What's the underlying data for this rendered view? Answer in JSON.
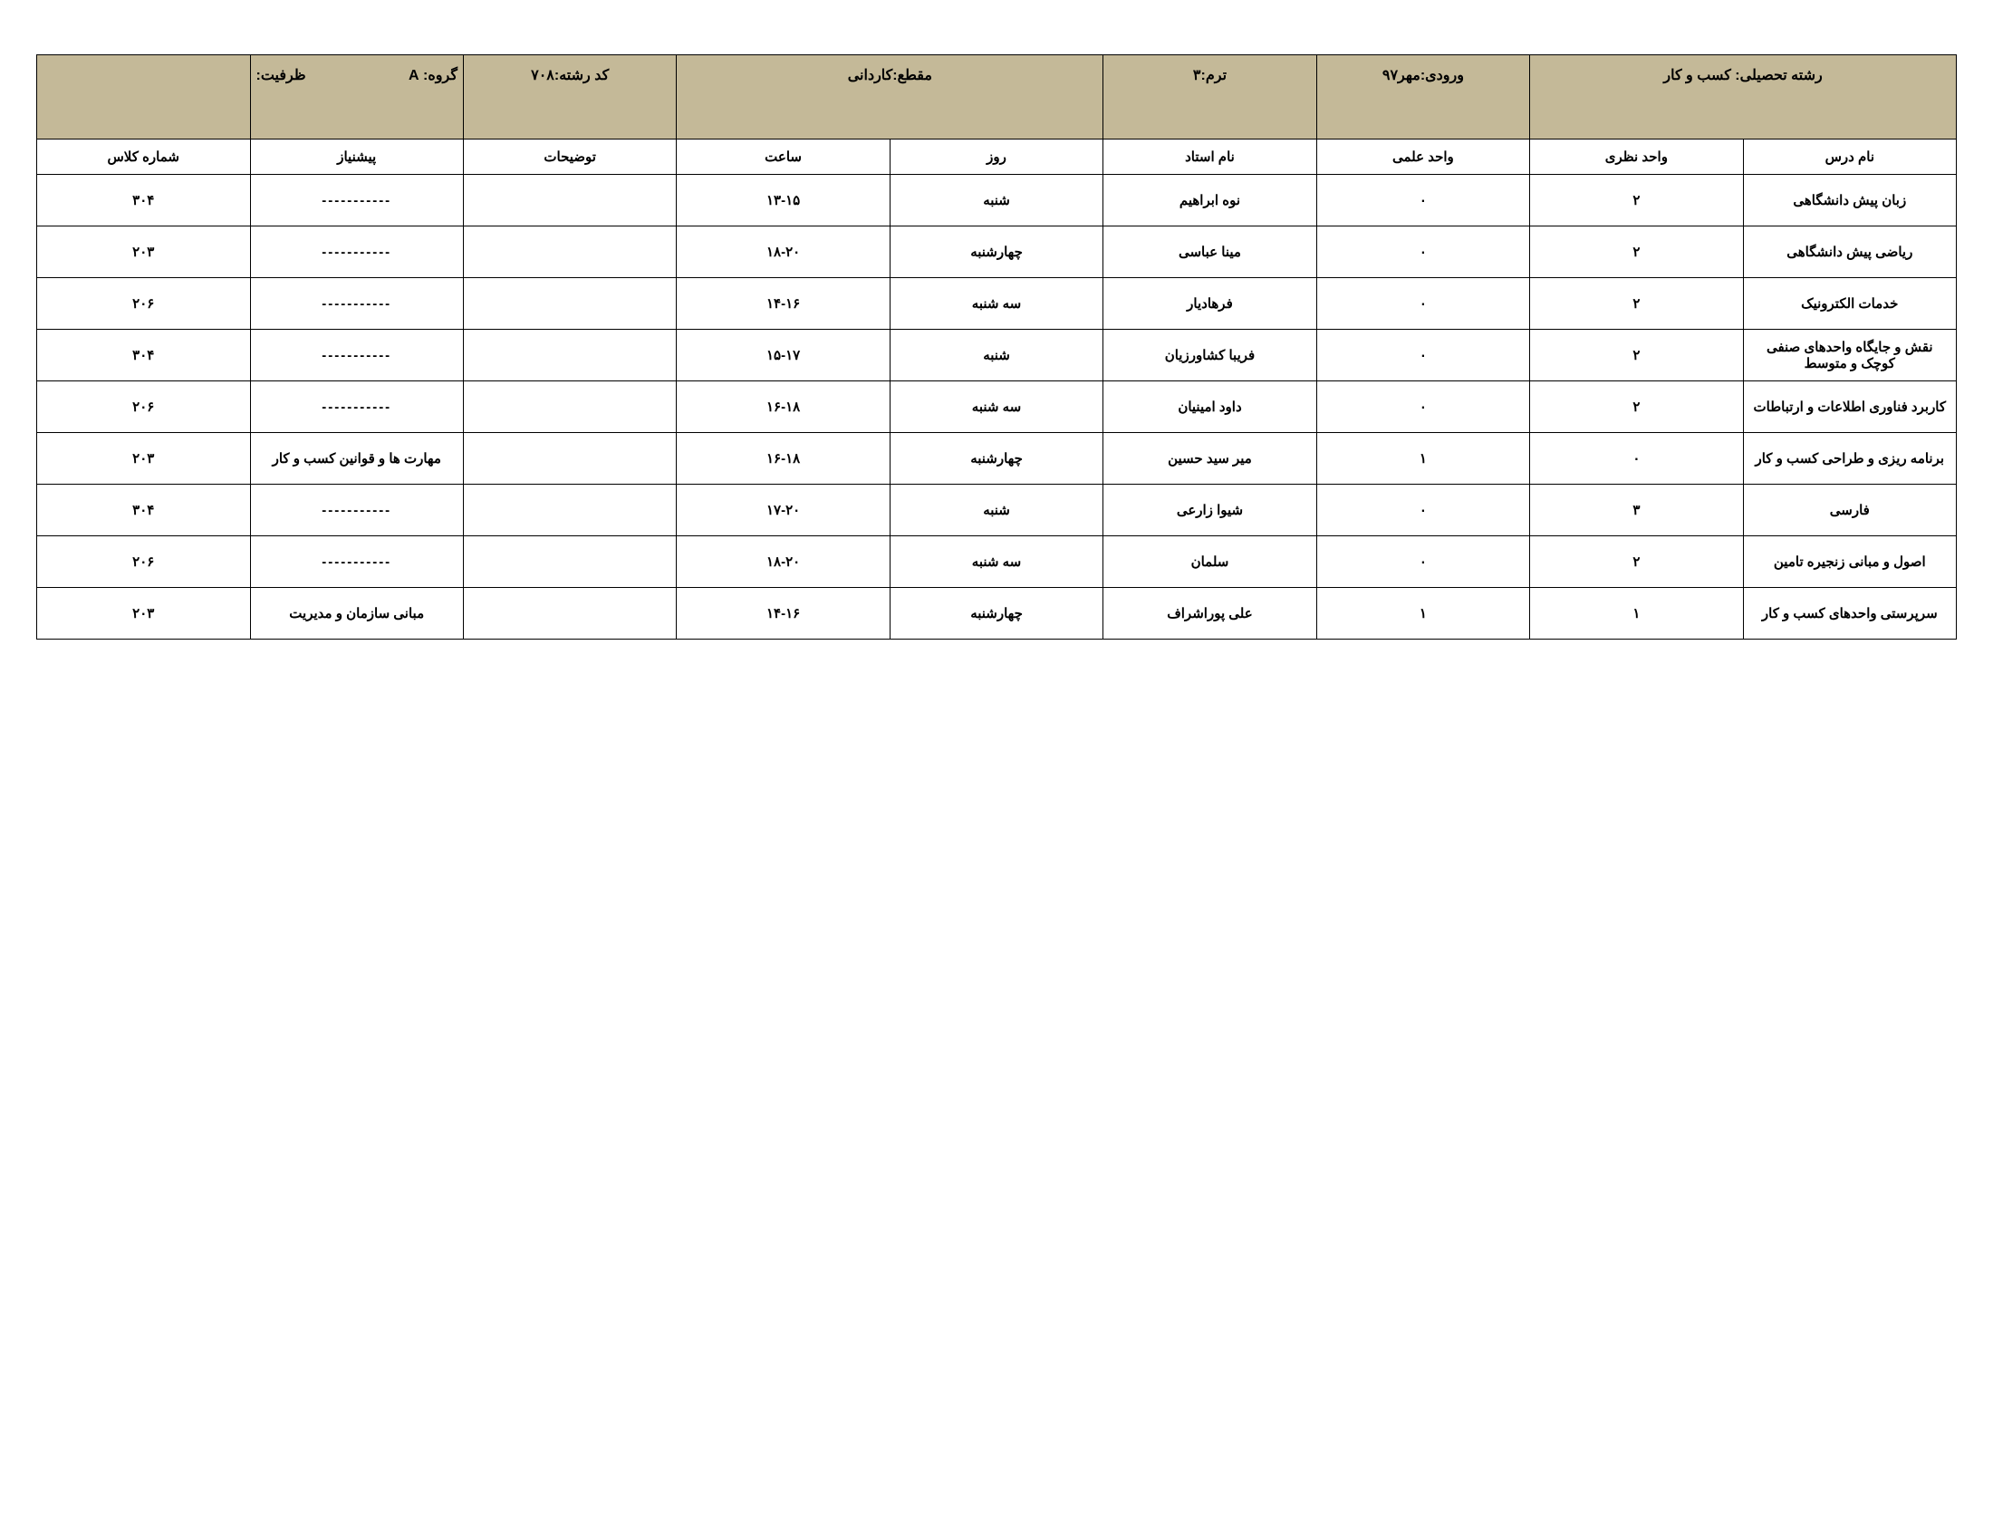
{
  "header": {
    "field_label": "رشته تحصیلی:",
    "field_value": "کسب و کار",
    "entry_label": "ورودی:",
    "entry_value": "مهر۹۷",
    "term_label": "ترم:",
    "term_value": "۳",
    "level_label": "مقطع:",
    "level_value": "کاردانی",
    "code_label": "کد رشته:",
    "code_value": "۷۰۸",
    "group_label": "گروه:",
    "group_value": "A",
    "capacity_label": "ظرفیت:",
    "capacity_value": ""
  },
  "columns": {
    "course": "نام درس",
    "theory": "واحد نظری",
    "practical": "واحد علمی",
    "instructor": "نام استاد",
    "day": "روز",
    "time": "ساعت",
    "notes": "توضیحات",
    "prereq": "پیشنیاز",
    "room": "شماره کلاس"
  },
  "rows": [
    {
      "course": "زبان پیش دانشگاهی",
      "theory": "۲",
      "practical": "۰",
      "instructor": "نوه ابراهیم",
      "day": "شنبه",
      "time": "۱۳-۱۵",
      "notes": "",
      "prereq": "-----------",
      "room": "۳۰۴"
    },
    {
      "course": "ریاضی پیش دانشگاهی",
      "theory": "۲",
      "practical": "۰",
      "instructor": "مینا عباسی",
      "day": "چهارشنبه",
      "time": "۱۸-۲۰",
      "notes": "",
      "prereq": "-----------",
      "room": "۲۰۳"
    },
    {
      "course": "خدمات الکترونیک",
      "theory": "۲",
      "practical": "۰",
      "instructor": "فرهادیار",
      "day": "سه شنبه",
      "time": "۱۴-۱۶",
      "notes": "",
      "prereq": "-----------",
      "room": "۲۰۶"
    },
    {
      "course": "نقش و جایگاه واحدهای صنفی کوچک و متوسط",
      "theory": "۲",
      "practical": "۰",
      "instructor": "فریبا کشاورزیان",
      "day": "شنبه",
      "time": "۱۵-۱۷",
      "notes": "",
      "prereq": "-----------",
      "room": "۳۰۴"
    },
    {
      "course": "کاربرد فناوری اطلاعات و ارتباطات",
      "theory": "۲",
      "practical": "۰",
      "instructor": "داود امینیان",
      "day": "سه شنبه",
      "time": "۱۶-۱۸",
      "notes": "",
      "prereq": "-----------",
      "room": "۲۰۶"
    },
    {
      "course": "برنامه ریزی و طراحی کسب و کار",
      "theory": "۰",
      "practical": "۱",
      "instructor": "میر سید حسین",
      "day": "چهارشنبه",
      "time": "۱۶-۱۸",
      "notes": "",
      "prereq": "مهارت ها و قوانین کسب و کار",
      "room": "۲۰۳"
    },
    {
      "course": "فارسی",
      "theory": "۳",
      "practical": "۰",
      "instructor": "شیوا زارعی",
      "day": "شنبه",
      "time": "۱۷-۲۰",
      "notes": "",
      "prereq": "-----------",
      "room": "۳۰۴"
    },
    {
      "course": "اصول و مبانی زنجیره تامین",
      "theory": "۲",
      "practical": "۰",
      "instructor": "سلمان",
      "day": "سه شنبه",
      "time": "۱۸-۲۰",
      "notes": "",
      "prereq": "-----------",
      "room": "۲۰۶"
    },
    {
      "course": "سرپرستی واحدهای کسب و کار",
      "theory": "۱",
      "practical": "۱",
      "instructor": "علی پوراشراف",
      "day": "چهارشنبه",
      "time": "۱۴-۱۶",
      "notes": "",
      "prereq": "مبانی سازمان و مدیریت",
      "room": "۲۰۳"
    }
  ],
  "styles": {
    "header_bg": "#c4b998",
    "border_color": "#000000",
    "text_color": "#000000",
    "dash_color": "#777777",
    "font_family": "Tahoma, Arial, sans-serif",
    "header_fontsize": 16,
    "cell_fontsize": 15
  }
}
